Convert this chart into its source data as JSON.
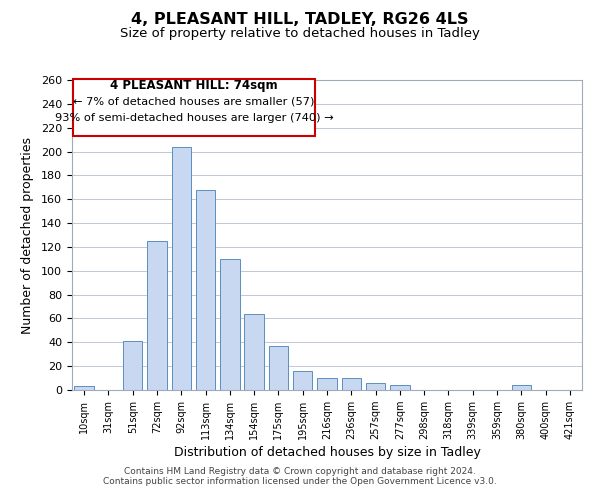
{
  "title": "4, PLEASANT HILL, TADLEY, RG26 4LS",
  "subtitle": "Size of property relative to detached houses in Tadley",
  "xlabel": "Distribution of detached houses by size in Tadley",
  "ylabel": "Number of detached properties",
  "bar_color": "#c8d8f0",
  "bar_edge_color": "#5a8fc0",
  "annotation_box_color": "#ffffff",
  "annotation_border_color": "#cc0000",
  "annotation_line1": "4 PLEASANT HILL: 74sqm",
  "annotation_line2": "← 7% of detached houses are smaller (57)",
  "annotation_line3": "93% of semi-detached houses are larger (740) →",
  "categories": [
    "10sqm",
    "31sqm",
    "51sqm",
    "72sqm",
    "92sqm",
    "113sqm",
    "134sqm",
    "154sqm",
    "175sqm",
    "195sqm",
    "216sqm",
    "236sqm",
    "257sqm",
    "277sqm",
    "298sqm",
    "318sqm",
    "339sqm",
    "359sqm",
    "380sqm",
    "400sqm",
    "421sqm"
  ],
  "values": [
    3,
    0,
    41,
    125,
    204,
    168,
    110,
    64,
    37,
    16,
    10,
    10,
    6,
    4,
    0,
    0,
    0,
    0,
    4,
    0,
    0
  ],
  "ylim": [
    0,
    260
  ],
  "yticks": [
    0,
    20,
    40,
    60,
    80,
    100,
    120,
    140,
    160,
    180,
    200,
    220,
    240,
    260
  ],
  "footer_line1": "Contains HM Land Registry data © Crown copyright and database right 2024.",
  "footer_line2": "Contains public sector information licensed under the Open Government Licence v3.0.",
  "background_color": "#ffffff",
  "grid_color": "#c0c8d8"
}
